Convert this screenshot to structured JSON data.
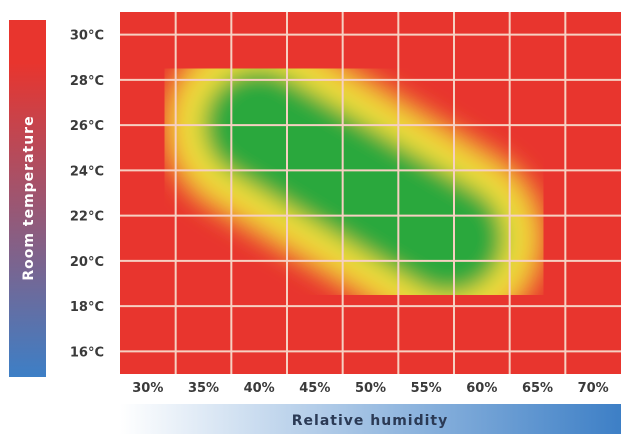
{
  "chart_data": {
    "type": "heatmap",
    "xlabel": "Relative humidity",
    "ylabel": "Room temperature",
    "x_ticks": [
      "30%",
      "35%",
      "40%",
      "45%",
      "50%",
      "55%",
      "60%",
      "65%",
      "70%"
    ],
    "y_ticks": [
      "30°C",
      "28°C",
      "26°C",
      "24°C",
      "22°C",
      "20°C",
      "18°C",
      "16°C"
    ],
    "x_range": [
      27.5,
      72.5
    ],
    "y_range": [
      15,
      31
    ],
    "comfort_zone": {
      "axis_point_a": {
        "humidity": 40,
        "temperature": 26
      },
      "axis_point_b": {
        "humidity": 57,
        "temperature": 21
      },
      "half_width_humidity": 7,
      "half_width_temperature": 1.3
    },
    "grid": true,
    "colors": {
      "hot_dry": "#e8352e",
      "mid": "#eede3a",
      "comfort": "#2aa83c",
      "gridline": "#f6d0c2",
      "ylabel_top": "#e8352e",
      "ylabel_bottom": "#3d7fc6",
      "xlabel_left": "#ffffff",
      "xlabel_right": "#3d7fc6",
      "axis_title_text": "#ffffff",
      "xlabel_text": "#2b3a55"
    }
  }
}
